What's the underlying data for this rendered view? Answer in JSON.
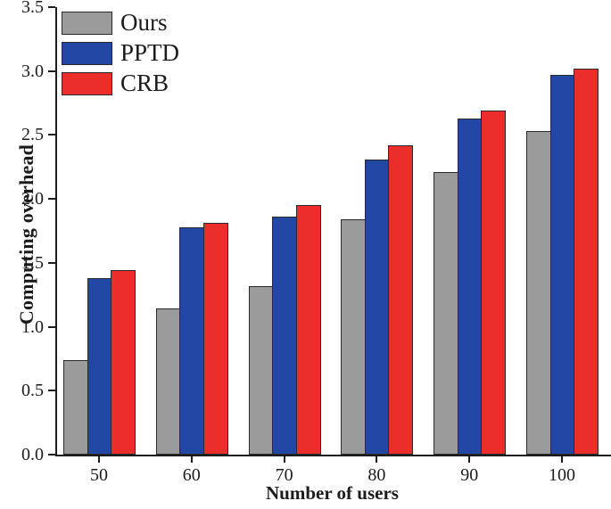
{
  "chart_data": {
    "type": "bar",
    "title": "",
    "xlabel": "Number of users",
    "ylabel": "Computing overhead",
    "categories": [
      "50",
      "60",
      "70",
      "80",
      "90",
      "100"
    ],
    "series": [
      {
        "name": "Ours",
        "color": "#9B9B9B",
        "values": [
          0.74,
          1.14,
          1.32,
          1.84,
          2.21,
          2.53
        ]
      },
      {
        "name": "PPTD",
        "color": "#2247A4",
        "values": [
          1.38,
          1.78,
          1.86,
          2.31,
          2.63,
          2.97
        ]
      },
      {
        "name": "CRB",
        "color": "#EB2D2C",
        "values": [
          1.44,
          1.81,
          1.95,
          2.42,
          2.69,
          3.02
        ]
      }
    ],
    "ylim": [
      0,
      3.5
    ],
    "yticks": [
      "0.0",
      "0.5",
      "1.0",
      "1.5",
      "2.0",
      "2.5",
      "3.0",
      "3.5"
    ],
    "grid": false,
    "legend_position": "top-left",
    "bar_edge_color": "#2a2a2a",
    "axis_color": "#1c1c1c"
  }
}
